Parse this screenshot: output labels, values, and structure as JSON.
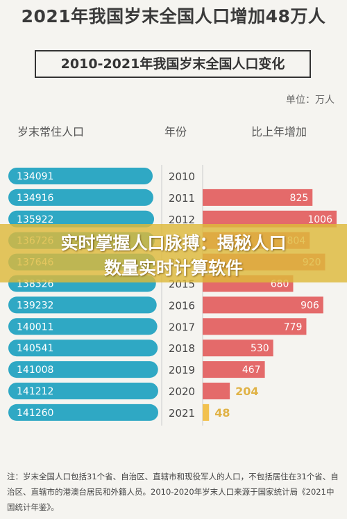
{
  "headline": "2021年我国岁末全国人口增加48万人",
  "banner": {
    "line1": "实时掌握人口脉搏：揭秘人口",
    "line2": "数量实时计算软件"
  },
  "chart_data": {
    "type": "bar",
    "title": "2010-2021年我国岁末全国人口变化",
    "unit": "单位：万人",
    "columns": [
      "岁末常住人口",
      "年份",
      "比上年增加"
    ],
    "categories": [
      "2010",
      "2011",
      "2012",
      "2013",
      "2014",
      "2015",
      "2016",
      "2017",
      "2018",
      "2019",
      "2020",
      "2021"
    ],
    "series": [
      {
        "name": "岁末常住人口",
        "values": [
          134091,
          134916,
          135922,
          136726,
          137646,
          138326,
          139232,
          140011,
          140541,
          141008,
          141212,
          141260
        ]
      },
      {
        "name": "比上年增加",
        "values": [
          null,
          825,
          1006,
          804,
          920,
          680,
          906,
          779,
          530,
          467,
          204,
          48
        ]
      }
    ],
    "colors": {
      "population": "#2fa8c4",
      "increase": "#e46a6a",
      "latest": "#f2c14e",
      "divider": "#cccccc"
    }
  },
  "footnote": "注：岁末全国人口包括31个省、自治区、直辖市和现役军人的人口，不包括居住在31个省、自治区、直辖市的港澳台居民和外籍人员。2010-2020年岁末人口来源于国家统计局《2021中国统计年鉴》。"
}
